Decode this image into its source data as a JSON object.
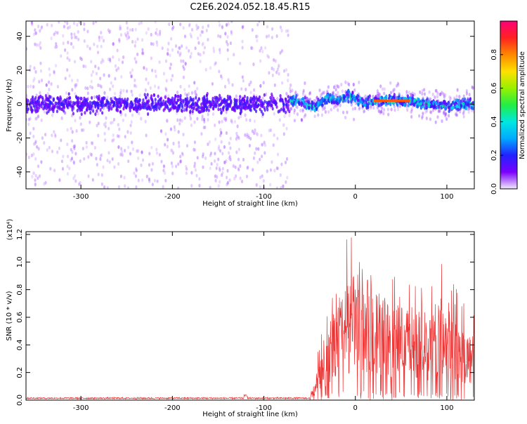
{
  "title": "C2E6.2024.052.18.45.R15",
  "colors": {
    "snr_line": "#ee3333",
    "scatter_base": "#6a00e8"
  },
  "chart_data": [
    {
      "type": "heatmap",
      "xlabel": "Height of straight line (km)",
      "ylabel": "Frequency (Hz)",
      "xlim": [
        -360,
        130
      ],
      "ylim": [
        -50,
        49
      ],
      "xticks": [
        -300,
        -200,
        -100,
        0,
        100
      ],
      "yticks": [
        -40,
        -20,
        0,
        20,
        40
      ],
      "grid": false,
      "colorbar": {
        "label": "Normalized spectral amplitude",
        "range": [
          0.0,
          1.0
        ],
        "ticks": [
          "0.0",
          "0.2",
          "0.4",
          "0.6",
          "0.8"
        ],
        "tick_values": [
          0.0,
          0.2,
          0.4,
          0.6,
          0.8
        ],
        "colormap": "rainbow-violet-to-magenta"
      },
      "ridge": [
        {
          "x": -70,
          "y": 2
        },
        {
          "x": -55,
          "y": 1
        },
        {
          "x": -45,
          "y": -2
        },
        {
          "x": -38,
          "y": 1
        },
        {
          "x": -30,
          "y": 4
        },
        {
          "x": -22,
          "y": 2
        },
        {
          "x": -15,
          "y": 3
        },
        {
          "x": -8,
          "y": 5
        },
        {
          "x": 0,
          "y": 3
        },
        {
          "x": 8,
          "y": 1
        },
        {
          "x": 20,
          "y": 2
        },
        {
          "x": 60,
          "y": 2
        },
        {
          "x": 80,
          "y": 0
        },
        {
          "x": 100,
          "y": -1
        },
        {
          "x": 130,
          "y": 0
        }
      ]
    },
    {
      "type": "line",
      "xlabel": "Height of straight line (km)",
      "ylabel": "SNR (10 * v/v)",
      "exponent_label": "(x10⁴)",
      "xlim": [
        -360,
        130
      ],
      "ylim": [
        0.0,
        1.22
      ],
      "xticks": [
        -300,
        -200,
        -100,
        0,
        100
      ],
      "yticks": [
        "0.0",
        "0.2",
        "0.4",
        "0.6",
        "0.8",
        "1.0",
        "1.2"
      ],
      "ytick_values": [
        0.0,
        0.2,
        0.4,
        0.6,
        0.8,
        1.0,
        1.2
      ],
      "grid": false,
      "envelope": [
        {
          "x": -360,
          "y": 0.01
        },
        {
          "x": -50,
          "y": 0.01
        },
        {
          "x": -45,
          "y": 0.1
        },
        {
          "x": -40,
          "y": 0.25
        },
        {
          "x": -30,
          "y": 0.45
        },
        {
          "x": -20,
          "y": 0.65
        },
        {
          "x": -10,
          "y": 0.75
        },
        {
          "x": 0,
          "y": 0.8
        },
        {
          "x": 10,
          "y": 0.78
        },
        {
          "x": 20,
          "y": 0.72
        },
        {
          "x": 30,
          "y": 0.66
        },
        {
          "x": 40,
          "y": 0.62
        },
        {
          "x": 50,
          "y": 0.6
        },
        {
          "x": 60,
          "y": 0.6
        },
        {
          "x": 70,
          "y": 0.6
        },
        {
          "x": 75,
          "y": 0.5
        },
        {
          "x": 80,
          "y": 0.5
        },
        {
          "x": 90,
          "y": 0.65
        },
        {
          "x": 100,
          "y": 0.65
        },
        {
          "x": 110,
          "y": 0.55
        },
        {
          "x": 120,
          "y": 0.45
        },
        {
          "x": 130,
          "y": 0.4
        }
      ]
    }
  ]
}
